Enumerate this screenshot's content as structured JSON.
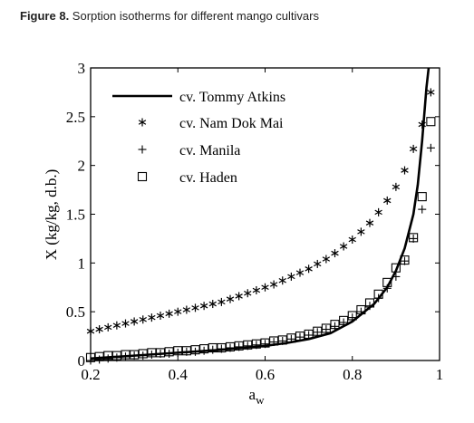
{
  "caption": {
    "label": "Figure 8.",
    "text": " Sorption isotherms for different mango cultivars"
  },
  "chart_data": {
    "type": "line",
    "xlabel": "a",
    "xlabel_sub": "w",
    "ylabel": "X (kg/kg, d.b.)",
    "xlim": [
      0.2,
      1.0
    ],
    "ylim": [
      0,
      3
    ],
    "xticks": [
      0.2,
      0.4,
      0.6,
      0.8,
      1.0
    ],
    "xtick_labels": [
      "0.2",
      "0.4",
      "0.6",
      "0.8",
      "1"
    ],
    "yticks": [
      0,
      0.5,
      1.0,
      1.5,
      2.0,
      2.5,
      3.0
    ],
    "ytick_labels": [
      "0",
      "0.5",
      "1",
      "1.5",
      "2",
      "2.5",
      "3"
    ],
    "grid": false,
    "legend_position": "top-left",
    "series": [
      {
        "name": "cv. Tommy Atkins",
        "style": "solid-line",
        "x": [
          0.2,
          0.25,
          0.3,
          0.35,
          0.4,
          0.45,
          0.5,
          0.55,
          0.6,
          0.65,
          0.7,
          0.75,
          0.8,
          0.85,
          0.88,
          0.9,
          0.92,
          0.94,
          0.95,
          0.96,
          0.97,
          0.975
        ],
        "y": [
          0.02,
          0.035,
          0.05,
          0.065,
          0.08,
          0.095,
          0.11,
          0.13,
          0.15,
          0.18,
          0.22,
          0.28,
          0.4,
          0.58,
          0.75,
          0.92,
          1.15,
          1.5,
          1.8,
          2.25,
          2.8,
          3.0
        ]
      },
      {
        "name": "cv. Nam Dok Mai",
        "style": "asterisk",
        "x": [
          0.2,
          0.22,
          0.24,
          0.26,
          0.28,
          0.3,
          0.32,
          0.34,
          0.36,
          0.38,
          0.4,
          0.42,
          0.44,
          0.46,
          0.48,
          0.5,
          0.52,
          0.54,
          0.56,
          0.58,
          0.6,
          0.62,
          0.64,
          0.66,
          0.68,
          0.7,
          0.72,
          0.74,
          0.76,
          0.78,
          0.8,
          0.82,
          0.84,
          0.86,
          0.88,
          0.9,
          0.92,
          0.94,
          0.96,
          0.98
        ],
        "y": [
          0.3,
          0.32,
          0.34,
          0.36,
          0.38,
          0.4,
          0.42,
          0.44,
          0.46,
          0.48,
          0.5,
          0.52,
          0.54,
          0.56,
          0.58,
          0.6,
          0.63,
          0.66,
          0.69,
          0.72,
          0.75,
          0.78,
          0.82,
          0.86,
          0.9,
          0.94,
          0.99,
          1.04,
          1.1,
          1.17,
          1.24,
          1.32,
          1.41,
          1.52,
          1.64,
          1.78,
          1.95,
          2.17,
          2.42,
          2.75
        ]
      },
      {
        "name": "cv. Manila",
        "style": "plus",
        "x": [
          0.2,
          0.22,
          0.24,
          0.26,
          0.28,
          0.3,
          0.32,
          0.34,
          0.36,
          0.38,
          0.4,
          0.42,
          0.44,
          0.46,
          0.48,
          0.5,
          0.52,
          0.54,
          0.56,
          0.58,
          0.6,
          0.62,
          0.64,
          0.66,
          0.68,
          0.7,
          0.72,
          0.74,
          0.76,
          0.78,
          0.8,
          0.82,
          0.84,
          0.86,
          0.88,
          0.9,
          0.92,
          0.94,
          0.96,
          0.98
        ],
        "y": [
          0.0,
          0.01,
          0.02,
          0.03,
          0.04,
          0.05,
          0.05,
          0.06,
          0.07,
          0.07,
          0.08,
          0.09,
          0.09,
          0.1,
          0.11,
          0.12,
          0.13,
          0.14,
          0.15,
          0.16,
          0.17,
          0.19,
          0.2,
          0.22,
          0.24,
          0.26,
          0.29,
          0.32,
          0.35,
          0.39,
          0.44,
          0.5,
          0.56,
          0.64,
          0.74,
          0.86,
          1.02,
          1.25,
          1.55,
          2.18
        ]
      },
      {
        "name": "cv. Haden",
        "style": "square",
        "x": [
          0.2,
          0.22,
          0.24,
          0.26,
          0.28,
          0.3,
          0.32,
          0.34,
          0.36,
          0.38,
          0.4,
          0.42,
          0.44,
          0.46,
          0.48,
          0.5,
          0.52,
          0.54,
          0.56,
          0.58,
          0.6,
          0.62,
          0.64,
          0.66,
          0.68,
          0.7,
          0.72,
          0.74,
          0.76,
          0.78,
          0.8,
          0.82,
          0.84,
          0.86,
          0.88,
          0.9,
          0.92,
          0.94,
          0.96,
          0.98
        ],
        "y": [
          0.03,
          0.04,
          0.05,
          0.05,
          0.06,
          0.06,
          0.07,
          0.08,
          0.08,
          0.09,
          0.1,
          0.1,
          0.11,
          0.12,
          0.13,
          0.13,
          0.14,
          0.15,
          0.16,
          0.17,
          0.18,
          0.2,
          0.21,
          0.23,
          0.25,
          0.27,
          0.3,
          0.33,
          0.37,
          0.41,
          0.46,
          0.52,
          0.59,
          0.68,
          0.8,
          0.95,
          1.03,
          1.26,
          1.68,
          2.45
        ]
      }
    ]
  }
}
